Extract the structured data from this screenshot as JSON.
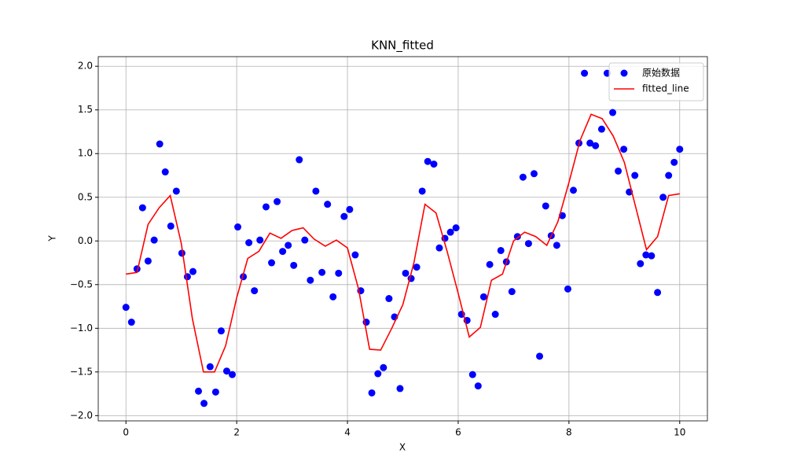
{
  "chart_data": {
    "type": "scatter",
    "title": "KNN_fitted",
    "x_label": "X",
    "y_label": "Y",
    "xlim": [
      -0.5,
      10.5
    ],
    "ylim": [
      -2.06,
      2.11
    ],
    "xticks": [
      0,
      2,
      4,
      6,
      8,
      10
    ],
    "yticks": [
      {
        "value": -2,
        "label": "−2.0"
      },
      {
        "value": -1.5,
        "label": "−1.5"
      },
      {
        "value": -1,
        "label": "−1.0"
      },
      {
        "value": -0.5,
        "label": "−0.5"
      },
      {
        "value": 0,
        "label": "0.0"
      },
      {
        "value": 0.5,
        "label": "0.5"
      },
      {
        "value": 1,
        "label": "1.0"
      },
      {
        "value": 1.5,
        "label": "1.5"
      },
      {
        "value": 2,
        "label": "2.0"
      }
    ],
    "grid": true,
    "legend": "upper right",
    "series": [
      {
        "name": "原始数据",
        "type": "scatter",
        "color": "#0000ff",
        "x": [
          0,
          0.1,
          0.2,
          0.3,
          0.4,
          0.51,
          0.61,
          0.71,
          0.81,
          0.91,
          1.01,
          1.11,
          1.21,
          1.31,
          1.41,
          1.52,
          1.62,
          1.72,
          1.82,
          1.92,
          2.02,
          2.12,
          2.22,
          2.32,
          2.42,
          2.53,
          2.63,
          2.73,
          2.83,
          2.93,
          3.03,
          3.13,
          3.23,
          3.33,
          3.43,
          3.54,
          3.64,
          3.74,
          3.84,
          3.94,
          4.04,
          4.14,
          4.24,
          4.34,
          4.44,
          4.55,
          4.65,
          4.75,
          4.85,
          4.95,
          5.05,
          5.15,
          5.25,
          5.35,
          5.45,
          5.56,
          5.66,
          5.76,
          5.86,
          5.96,
          6.06,
          6.16,
          6.26,
          6.36,
          6.46,
          6.57,
          6.67,
          6.77,
          6.87,
          6.97,
          7.07,
          7.17,
          7.27,
          7.37,
          7.47,
          7.58,
          7.68,
          7.78,
          7.88,
          7.98,
          8.08,
          8.18,
          8.28,
          8.38,
          8.48,
          8.59,
          8.69,
          8.79,
          8.89,
          8.99,
          9.09,
          9.19,
          9.29,
          9.39,
          9.49,
          9.6,
          9.7,
          9.8,
          9.9,
          10
        ],
        "values": [
          -0.76,
          -0.93,
          -0.32,
          0.38,
          -0.23,
          0.01,
          1.11,
          0.79,
          0.17,
          0.57,
          -0.14,
          -0.41,
          -0.35,
          -1.72,
          -1.86,
          -1.44,
          -1.73,
          -1.03,
          -1.49,
          -1.53,
          0.16,
          -0.41,
          -0.02,
          -0.57,
          0.01,
          0.39,
          -0.25,
          0.45,
          -0.12,
          -0.05,
          -0.28,
          0.93,
          0.01,
          -0.45,
          0.57,
          -0.36,
          0.42,
          -0.64,
          -0.37,
          0.28,
          0.36,
          -0.16,
          -0.57,
          -0.93,
          -1.74,
          -1.52,
          -1.45,
          -0.66,
          -0.87,
          -1.69,
          -0.37,
          -0.43,
          -0.3,
          0.57,
          0.91,
          0.88,
          -0.08,
          0.03,
          0.1,
          0.15,
          -0.84,
          -0.91,
          -1.53,
          -1.66,
          -0.64,
          -0.27,
          -0.84,
          -0.11,
          -0.24,
          -0.58,
          0.05,
          0.73,
          -0.03,
          0.77,
          -1.32,
          0.4,
          0.06,
          -0.05,
          0.29,
          -0.55,
          0.58,
          1.12,
          1.92,
          1.12,
          1.09,
          1.28,
          1.92,
          1.47,
          0.8,
          1.05,
          0.56,
          0.75,
          -0.26,
          -0.16,
          -0.17,
          -0.59,
          0.5,
          0.75,
          0.9,
          1.05
        ]
      },
      {
        "name": "fitted_line",
        "type": "line",
        "color": "#ff0000",
        "x": [
          0,
          0.2,
          0.4,
          0.6,
          0.8,
          1,
          1.2,
          1.4,
          1.6,
          1.8,
          2,
          2.2,
          2.4,
          2.6,
          2.8,
          3,
          3.2,
          3.4,
          3.6,
          3.8,
          4,
          4.2,
          4.4,
          4.6,
          4.8,
          5,
          5.2,
          5.4,
          5.6,
          5.8,
          6,
          6.2,
          6.4,
          6.6,
          6.8,
          7,
          7.2,
          7.4,
          7.6,
          7.8,
          8,
          8.2,
          8.4,
          8.6,
          8.8,
          9,
          9.2,
          9.4,
          9.6,
          9.8,
          10
        ],
        "values": [
          -0.38,
          -0.36,
          0.19,
          0.38,
          0.52,
          -0.03,
          -0.89,
          -1.5,
          -1.5,
          -1.2,
          -0.65,
          -0.2,
          -0.12,
          0.09,
          0.03,
          0.12,
          0.15,
          0.02,
          -0.06,
          0.01,
          -0.08,
          -0.55,
          -1.24,
          -1.25,
          -1,
          -0.73,
          -0.25,
          0.42,
          0.32,
          -0.12,
          -0.6,
          -1.1,
          -0.99,
          -0.45,
          -0.38,
          0,
          0.1,
          0.05,
          -0.05,
          0.22,
          0.67,
          1.15,
          1.45,
          1.4,
          1.2,
          0.9,
          0.4,
          -0.1,
          0.05,
          0.52,
          0.54
        ]
      }
    ]
  }
}
